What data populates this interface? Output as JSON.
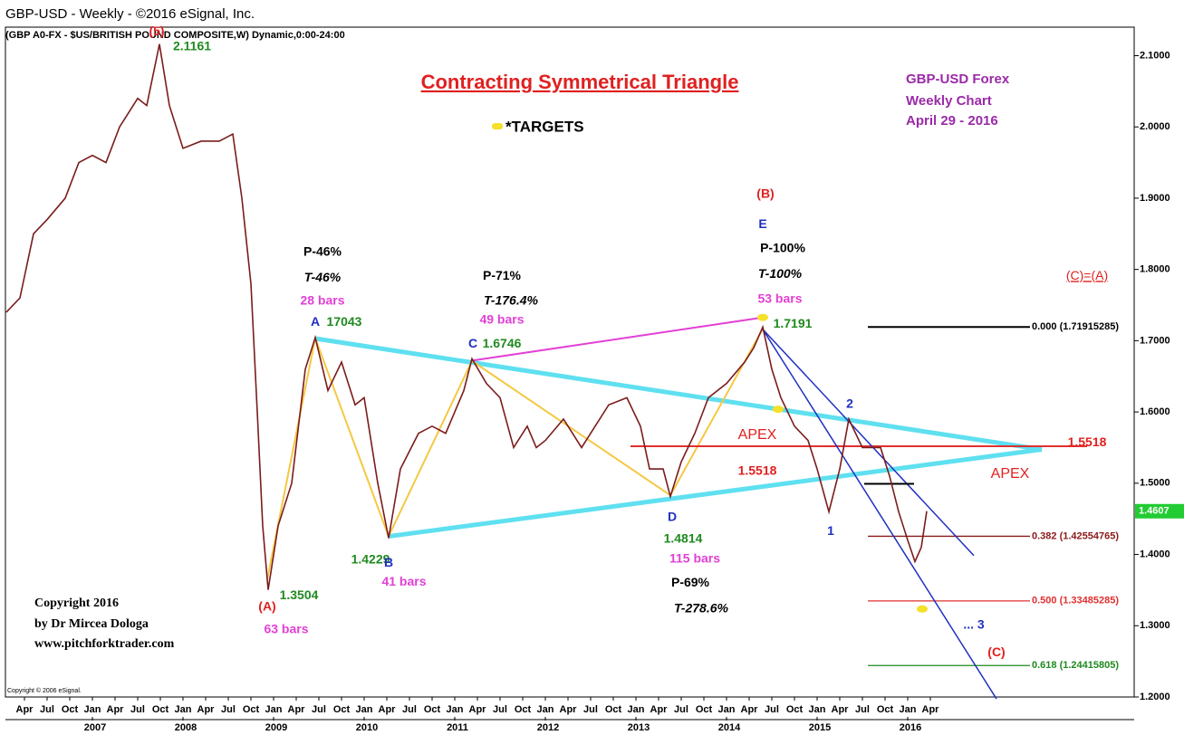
{
  "header": {
    "title": "GBP-USD -  Weekly - ©2016 eSignal, Inc.",
    "subtitle": "(GBP A0-FX - $US/BRITISH POUND COMPOSITE,W) Dynamic,0:00-24:00"
  },
  "chart_data": {
    "type": "line",
    "title": "Contracting Symmetrical Triangle",
    "legend": {
      "marker_color": "#f5e02a",
      "label": "*TARGETS"
    },
    "info": [
      "GBP-USD Forex",
      "Weekly Chart",
      "April 29  - 2016"
    ],
    "copyright": [
      "Copyright 2016",
      "by Dr Mircea Dologa",
      "www.pitchforktrader.com"
    ],
    "source_note": "Copyright © 2006 eSignal.",
    "xlim": [
      2006.04,
      2018.5
    ],
    "ylim": [
      1.2,
      2.14
    ],
    "yticks": [
      {
        "value": 1.2,
        "label": "1.2000"
      },
      {
        "value": 1.3,
        "label": "1.3000"
      },
      {
        "value": 1.4,
        "label": "1.4000"
      },
      {
        "value": 1.5,
        "label": "1.5000"
      },
      {
        "value": 1.6,
        "label": "1.6000"
      },
      {
        "value": 1.7,
        "label": "1.7000"
      },
      {
        "value": 1.8,
        "label": "1.8000"
      },
      {
        "value": 1.9,
        "label": "1.9000"
      },
      {
        "value": 2.0,
        "label": "2.0000"
      },
      {
        "value": 2.1,
        "label": "2.1000"
      }
    ],
    "xticks": [
      {
        "value": 2006.25,
        "label": "Apr"
      },
      {
        "value": 2006.5,
        "label": "Jul"
      },
      {
        "value": 2006.75,
        "label": "Oct"
      },
      {
        "value": 2007,
        "label": "Jan"
      },
      {
        "value": 2007.25,
        "label": "Apr"
      },
      {
        "value": 2007.5,
        "label": "Jul"
      },
      {
        "value": 2007.75,
        "label": "Oct"
      },
      {
        "value": 2008,
        "label": "Jan"
      },
      {
        "value": 2008.25,
        "label": "Apr"
      },
      {
        "value": 2008.5,
        "label": "Jul"
      },
      {
        "value": 2008.75,
        "label": "Oct"
      },
      {
        "value": 2009,
        "label": "Jan"
      },
      {
        "value": 2009.25,
        "label": "Apr"
      },
      {
        "value": 2009.5,
        "label": "Jul"
      },
      {
        "value": 2009.75,
        "label": "Oct"
      },
      {
        "value": 2010,
        "label": "Jan"
      },
      {
        "value": 2010.25,
        "label": "Apr"
      },
      {
        "value": 2010.5,
        "label": "Jul"
      },
      {
        "value": 2010.75,
        "label": "Oct"
      },
      {
        "value": 2011,
        "label": "Jan"
      },
      {
        "value": 2011.25,
        "label": "Apr"
      },
      {
        "value": 2011.5,
        "label": "Jul"
      },
      {
        "value": 2011.75,
        "label": "Oct"
      },
      {
        "value": 2012,
        "label": "Jan"
      },
      {
        "value": 2012.25,
        "label": "Apr"
      },
      {
        "value": 2012.5,
        "label": "Jul"
      },
      {
        "value": 2012.75,
        "label": "Oct"
      },
      {
        "value": 2013,
        "label": "Jan"
      },
      {
        "value": 2013.25,
        "label": "Apr"
      },
      {
        "value": 2013.5,
        "label": "Jul"
      },
      {
        "value": 2013.75,
        "label": "Oct"
      },
      {
        "value": 2014,
        "label": "Jan"
      },
      {
        "value": 2014.25,
        "label": "Apr"
      },
      {
        "value": 2014.5,
        "label": "Jul"
      },
      {
        "value": 2014.75,
        "label": "Oct"
      },
      {
        "value": 2015,
        "label": "Jan"
      },
      {
        "value": 2015.25,
        "label": "Apr"
      },
      {
        "value": 2015.5,
        "label": "Jul"
      },
      {
        "value": 2015.75,
        "label": "Oct"
      },
      {
        "value": 2016,
        "label": "Jan"
      },
      {
        "value": 2016.25,
        "label": "Apr"
      }
    ],
    "year_ticks": [
      {
        "value": 2007,
        "label": "2007"
      },
      {
        "value": 2008,
        "label": "2008"
      },
      {
        "value": 2009,
        "label": "2009"
      },
      {
        "value": 2010,
        "label": "2010"
      },
      {
        "value": 2011,
        "label": "2011"
      },
      {
        "value": 2012,
        "label": "2012"
      },
      {
        "value": 2013,
        "label": "2013"
      },
      {
        "value": 2014,
        "label": "2014"
      },
      {
        "value": 2015,
        "label": "2015"
      },
      {
        "value": 2016,
        "label": "2016"
      }
    ],
    "x": [
      2006.05,
      2006.2,
      2006.35,
      2006.5,
      2006.7,
      2006.85,
      2007.0,
      2007.15,
      2007.3,
      2007.5,
      2007.6,
      2007.74,
      2007.85,
      2008.0,
      2008.2,
      2008.4,
      2008.55,
      2008.65,
      2008.75,
      2008.82,
      2008.88,
      2008.94,
      2009.05,
      2009.2,
      2009.35,
      2009.46,
      2009.6,
      2009.75,
      2009.9,
      2010.0,
      2010.15,
      2010.27,
      2010.4,
      2010.6,
      2010.75,
      2010.9,
      2011.0,
      2011.1,
      2011.19,
      2011.35,
      2011.5,
      2011.65,
      2011.8,
      2011.9,
      2012.0,
      2012.2,
      2012.4,
      2012.5,
      2012.7,
      2012.9,
      2013.05,
      2013.15,
      2013.3,
      2013.38,
      2013.5,
      2013.65,
      2013.8,
      2014.0,
      2014.2,
      2014.3,
      2014.4,
      2014.5,
      2014.6,
      2014.75,
      2014.9,
      2015.0,
      2015.13,
      2015.25,
      2015.35,
      2015.5,
      2015.7,
      2015.8,
      2015.9,
      2016.0,
      2016.08,
      2016.15,
      2016.21
    ],
    "series": [
      {
        "name": "GBP-USD",
        "color": "#7a1c1c",
        "values": [
          1.74,
          1.76,
          1.85,
          1.87,
          1.9,
          1.95,
          1.96,
          1.95,
          2.0,
          2.04,
          2.03,
          2.1161,
          2.03,
          1.97,
          1.98,
          1.98,
          1.99,
          1.9,
          1.78,
          1.6,
          1.44,
          1.3504,
          1.44,
          1.5,
          1.66,
          1.7043,
          1.63,
          1.67,
          1.61,
          1.62,
          1.5,
          1.4229,
          1.52,
          1.57,
          1.58,
          1.57,
          1.6,
          1.63,
          1.6746,
          1.64,
          1.62,
          1.55,
          1.58,
          1.55,
          1.56,
          1.59,
          1.55,
          1.57,
          1.61,
          1.62,
          1.58,
          1.52,
          1.52,
          1.4814,
          1.53,
          1.57,
          1.62,
          1.64,
          1.67,
          1.69,
          1.7191,
          1.66,
          1.62,
          1.58,
          1.56,
          1.52,
          1.46,
          1.52,
          1.59,
          1.55,
          1.55,
          1.51,
          1.46,
          1.42,
          1.39,
          1.41,
          1.4607
        ]
      }
    ],
    "last_price": {
      "value": 1.4607,
      "label": "1.4607",
      "color": "#22cc33"
    },
    "drawings": [
      {
        "color": "#5fe0f0",
        "width": 5,
        "points": [
          [
            2009.46,
            1.703
          ],
          [
            2017.48,
            1.5474
          ]
        ]
      },
      {
        "color": "#5fe0f0",
        "width": 5,
        "points": [
          [
            2010.27,
            1.4254
          ],
          [
            2017.48,
            1.5474
          ]
        ]
      },
      {
        "color": "#e23fd6",
        "width": 2,
        "points": [
          [
            2011.19,
            1.672
          ],
          [
            2014.4,
            1.7326
          ]
        ]
      },
      {
        "color": "#f5c842",
        "width": 2,
        "points": [
          [
            2008.93,
            1.365
          ],
          [
            2009.46,
            1.7036
          ],
          [
            2010.27,
            1.4254
          ],
          [
            2011.19,
            1.6716
          ],
          [
            2013.38,
            1.483
          ],
          [
            2014.4,
            1.7164
          ]
        ]
      },
      {
        "color": "#e03030",
        "width": 2,
        "points": [
          [
            2012.94,
            1.5518
          ],
          [
            2017.98,
            1.5518
          ]
        ]
      },
      {
        "color": "#2030c0",
        "width": 1.5,
        "points": [
          [
            2014.4,
            1.716
          ],
          [
            2016.73,
            1.3985
          ]
        ]
      },
      {
        "color": "#2030c0",
        "width": 1.5,
        "points": [
          [
            2014.4,
            1.716
          ],
          [
            2016.98,
            1.1974
          ]
        ]
      },
      {
        "color": "#000000",
        "width": 2,
        "points": [
          [
            2015.52,
            1.4991
          ],
          [
            2016.07,
            1.4991
          ]
        ]
      }
    ],
    "fib_levels": [
      {
        "value": 1.71915285,
        "label": "0.000 (1.71915285)",
        "color": "#000000",
        "from": 2015.56,
        "to": 2017.35
      },
      {
        "value": 1.42554765,
        "label": "0.382 (1.42554765)",
        "color": "#8b1a1a",
        "from": 2015.56,
        "to": 2017.35
      },
      {
        "value": 1.33485285,
        "label": "0.500 (1.33485285)",
        "color": "#e03030",
        "from": 2015.56,
        "to": 2017.35
      },
      {
        "value": 1.24415805,
        "label": "0.618 (1.24415805)",
        "color": "#1f8a1f",
        "from": 2015.56,
        "to": 2017.35
      }
    ],
    "targets": [
      [
        2014.4,
        1.7326
      ],
      [
        2014.57,
        1.6038
      ],
      [
        2016.16,
        1.3235
      ]
    ],
    "annotations": [
      {
        "text": "(5)",
        "x": 2007.71,
        "y": 2.1335,
        "color": "#e02020",
        "style": "bold"
      },
      {
        "text": "2.1161",
        "x": 2008.1,
        "y": 2.112,
        "color": "#1f8a1f",
        "style": "bold"
      },
      {
        "text": "P-46%",
        "x": 2009.54,
        "y": 1.824,
        "color": "#000000",
        "style": "bold"
      },
      {
        "text": "T-46%",
        "x": 2009.54,
        "y": 1.7875,
        "color": "#000000",
        "style": "bolditalic"
      },
      {
        "text": "28 bars",
        "x": 2009.54,
        "y": 1.7553,
        "color": "#e23fd6",
        "style": "bold"
      },
      {
        "text": "A",
        "x": 2009.46,
        "y": 1.7258,
        "color": "#2030c0",
        "style": "bold"
      },
      {
        "text": "17043",
        "x": 2009.78,
        "y": 1.7258,
        "color": "#1f8a1f",
        "style": "bold"
      },
      {
        "text": "P-71%",
        "x": 2011.52,
        "y": 1.79,
        "color": "#000000",
        "style": "bold"
      },
      {
        "text": "T-176.4%",
        "x": 2011.62,
        "y": 1.7553,
        "color": "#000000",
        "style": "bolditalic"
      },
      {
        "text": "49 bars",
        "x": 2011.52,
        "y": 1.7285,
        "color": "#e23fd6",
        "style": "bold"
      },
      {
        "text": "C",
        "x": 2011.2,
        "y": 1.695,
        "color": "#2030c0",
        "style": "bold"
      },
      {
        "text": "1.6746",
        "x": 2011.52,
        "y": 1.695,
        "color": "#1f8a1f",
        "style": "bold"
      },
      {
        "text": "(B)",
        "x": 2014.43,
        "y": 1.9055,
        "color": "#e02020",
        "style": "bold"
      },
      {
        "text": "E",
        "x": 2014.4,
        "y": 1.8626,
        "color": "#2030c0",
        "style": "bold"
      },
      {
        "text": "P-100%",
        "x": 2014.62,
        "y": 1.829,
        "color": "#000000",
        "style": "bold"
      },
      {
        "text": "T-100%",
        "x": 2014.59,
        "y": 1.7928,
        "color": "#000000",
        "style": "bolditalic"
      },
      {
        "text": "53 bars",
        "x": 2014.59,
        "y": 1.758,
        "color": "#e23fd6",
        "style": "bold"
      },
      {
        "text": "1.7191",
        "x": 2014.73,
        "y": 1.7231,
        "color": "#1f8a1f",
        "style": "bold"
      },
      {
        "text": "APEX",
        "x": 2014.34,
        "y": 1.5675,
        "color": "#e02020",
        "style": "normal"
      },
      {
        "text": "1.5518",
        "x": 2014.34,
        "y": 1.5166,
        "color": "#e02020",
        "style": "bold"
      },
      {
        "text": "1.5518",
        "x": 2017.98,
        "y": 1.5568,
        "color": "#e02020",
        "style": "bold"
      },
      {
        "text": "APEX",
        "x": 2017.13,
        "y": 1.5126,
        "color": "#e02020",
        "style": "normal"
      },
      {
        "text": "(C)=(A)",
        "x": 2017.98,
        "y": 1.79,
        "color": "#e02020",
        "style": "underline"
      },
      {
        "text": "2",
        "x": 2015.36,
        "y": 1.6105,
        "color": "#2030c0",
        "style": "bold"
      },
      {
        "text": "1",
        "x": 2015.15,
        "y": 1.432,
        "color": "#2030c0",
        "style": "bold"
      },
      {
        "text": "D",
        "x": 2013.4,
        "y": 1.452,
        "color": "#2030c0",
        "style": "bold"
      },
      {
        "text": "1.4814",
        "x": 2013.52,
        "y": 1.4213,
        "color": "#1f8a1f",
        "style": "bold"
      },
      {
        "text": "115 bars",
        "x": 2013.65,
        "y": 1.3932,
        "color": "#e23fd6",
        "style": "bold"
      },
      {
        "text": "P-69%",
        "x": 2013.6,
        "y": 1.3597,
        "color": "#000000",
        "style": "bold"
      },
      {
        "text": "T-278.6%",
        "x": 2013.72,
        "y": 1.3235,
        "color": "#000000",
        "style": "bolditalic"
      },
      {
        "text": "1.4229",
        "x": 2010.07,
        "y": 1.3918,
        "color": "#1f8a1f",
        "style": "bold"
      },
      {
        "text": "B",
        "x": 2010.27,
        "y": 1.3878,
        "color": "#2030c0",
        "style": "bold"
      },
      {
        "text": "41 bars",
        "x": 2010.44,
        "y": 1.361,
        "color": "#e23fd6",
        "style": "bold"
      },
      {
        "text": "(A)",
        "x": 2008.93,
        "y": 1.326,
        "color": "#e02020",
        "style": "bold"
      },
      {
        "text": "1.3504",
        "x": 2009.28,
        "y": 1.342,
        "color": "#1f8a1f",
        "style": "bold"
      },
      {
        "text": "63 bars",
        "x": 2009.14,
        "y": 1.294,
        "color": "#e23fd6",
        "style": "bold"
      },
      {
        "text": "... 3",
        "x": 2016.73,
        "y": 1.3006,
        "color": "#2030c0",
        "style": "bold"
      },
      {
        "text": "(C)",
        "x": 2016.98,
        "y": 1.262,
        "color": "#e02020",
        "style": "bold"
      }
    ]
  }
}
